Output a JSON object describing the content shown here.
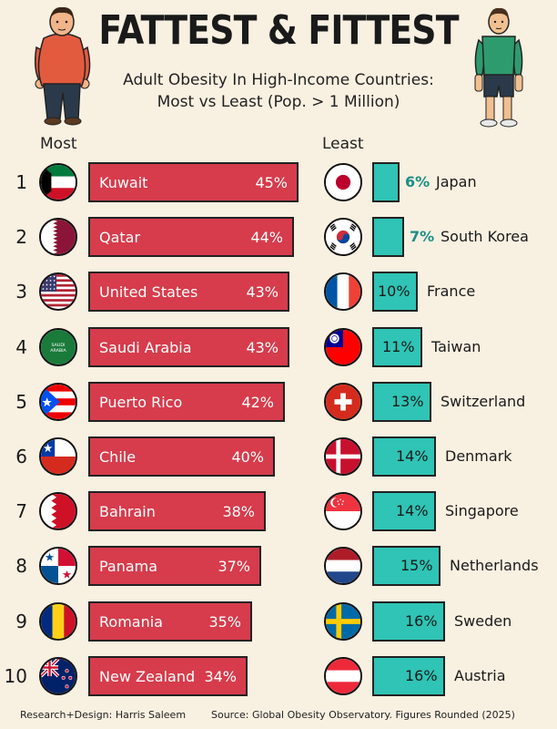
{
  "title": "FATTEST & FITTEST",
  "subtitle_line1": "Adult Obesity In High-Income Countries:",
  "subtitle_line2": "Most vs Least (Pop. > 1 Million)",
  "footer_left": "Research+Design: Harris Saleem",
  "footer_right": "Source: Global Obesity Observatory. Figures Rounded (2025)",
  "colors": {
    "most_bar": "#d63c4c",
    "least_bar": "#2fc4b5",
    "background": "#f8f0e1"
  },
  "chart_data": [
    {
      "type": "bar",
      "title": "Most",
      "unit": "%",
      "categories": [
        "Kuwait",
        "Qatar",
        "United States",
        "Saudi Arabia",
        "Puerto Rico",
        "Chile",
        "Bahrain",
        "Panama",
        "Romania",
        "New Zealand"
      ],
      "ranks": [
        "1",
        "2",
        "3",
        "4",
        "5",
        "6",
        "7",
        "8",
        "9",
        "10"
      ],
      "values": [
        45,
        44,
        43,
        43,
        42,
        40,
        38,
        37,
        35,
        34
      ],
      "labels": [
        "45%",
        "44%",
        "43%",
        "43%",
        "42%",
        "40%",
        "38%",
        "37%",
        "35%",
        "34%"
      ]
    },
    {
      "type": "bar",
      "title": "Least",
      "unit": "%",
      "categories": [
        "Japan",
        "South Korea",
        "France",
        "Taiwan",
        "Switzerland",
        "Denmark",
        "Singapore",
        "Netherlands",
        "Sweden",
        "Austria"
      ],
      "values": [
        6,
        7,
        10,
        11,
        13,
        14,
        14,
        15,
        16,
        16
      ],
      "labels": [
        "6%",
        "7%",
        "10%",
        "11%",
        "13%",
        "14%",
        "14%",
        "15%",
        "16%",
        "16%"
      ]
    }
  ],
  "flags": {
    "most": [
      "kuwait-flag-icon",
      "qatar-flag-icon",
      "usa-flag-icon",
      "saudi-arabia-flag-icon",
      "puerto-rico-flag-icon",
      "chile-flag-icon",
      "bahrain-flag-icon",
      "panama-flag-icon",
      "romania-flag-icon",
      "new-zealand-flag-icon"
    ],
    "least": [
      "japan-flag-icon",
      "south-korea-flag-icon",
      "france-flag-icon",
      "taiwan-flag-icon",
      "switzerland-flag-icon",
      "denmark-flag-icon",
      "singapore-flag-icon",
      "netherlands-flag-icon",
      "sweden-flag-icon",
      "austria-flag-icon"
    ],
    "saudi_text": "SAUDI ARABIA"
  }
}
